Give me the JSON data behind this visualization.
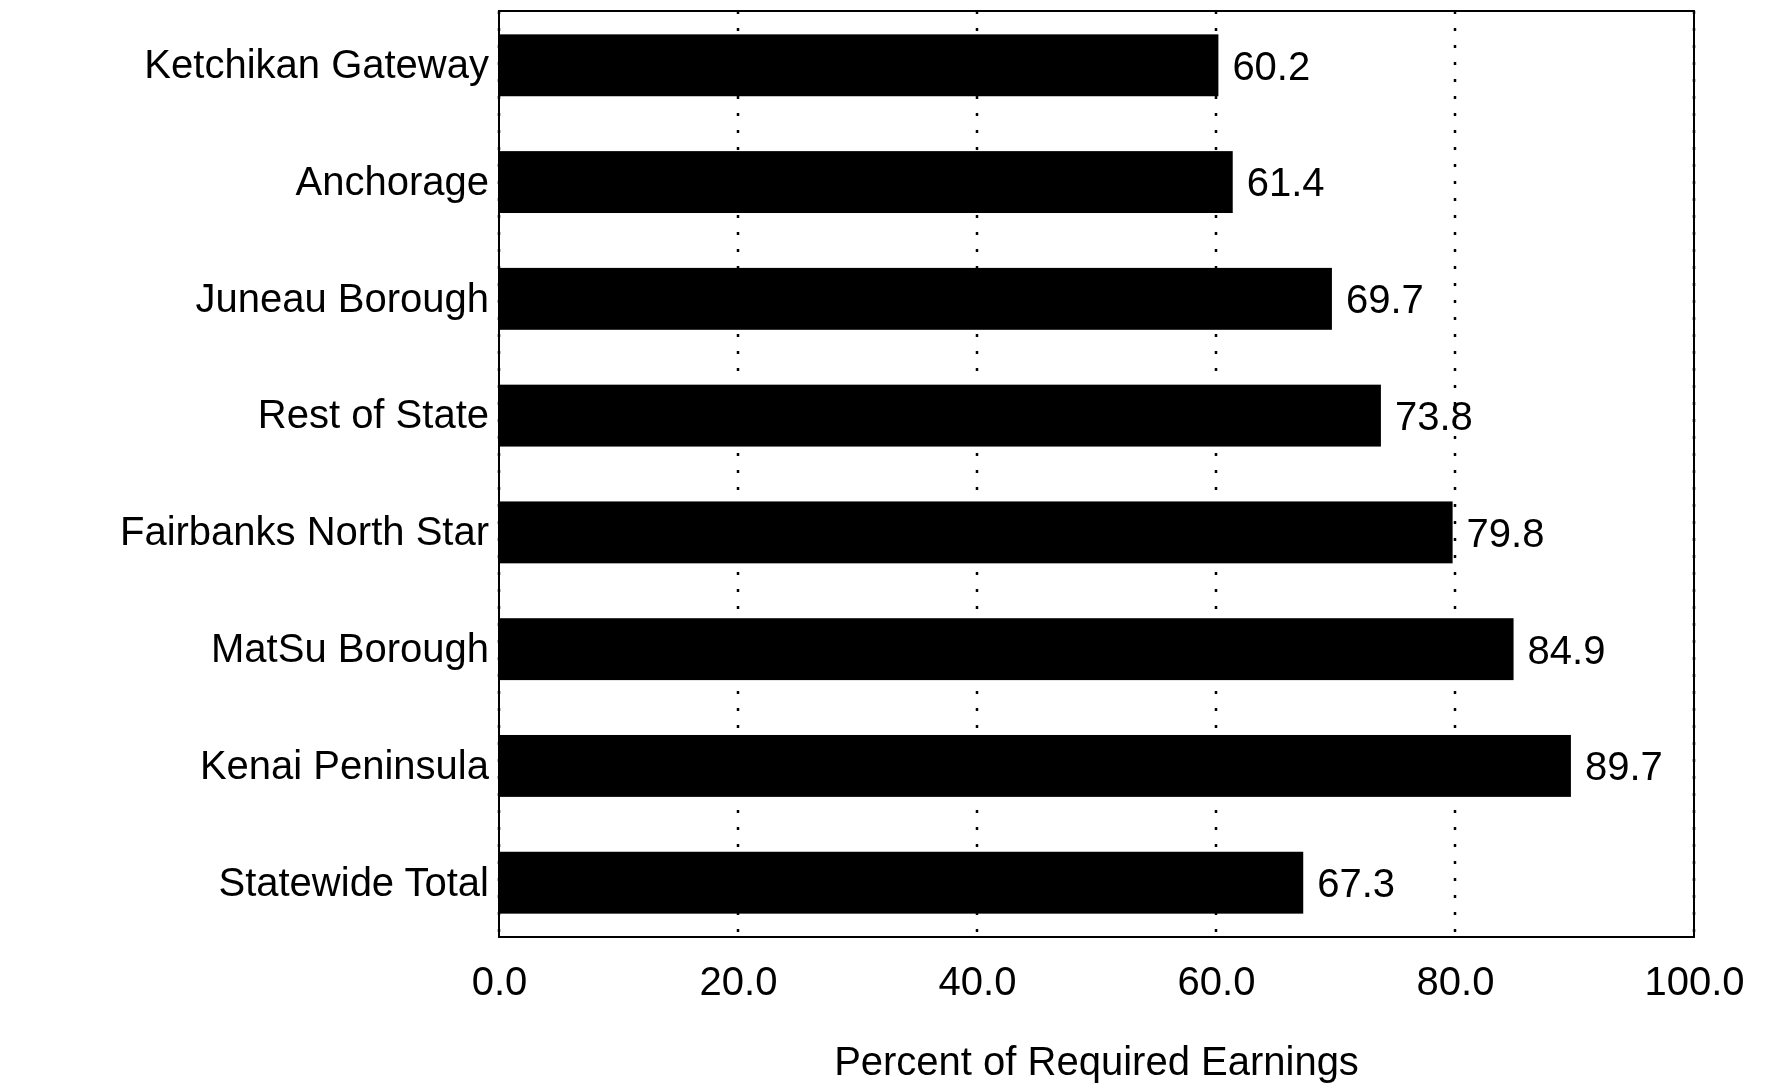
{
  "chart_data": {
    "type": "bar",
    "orientation": "horizontal",
    "xlabel": "Percent of Required Earnings",
    "categories": [
      "Ketchikan Gateway",
      "Anchorage",
      "Juneau Borough",
      "Rest of State",
      "Fairbanks North Star",
      "MatSu Borough",
      "Kenai Peninsula",
      "Statewide Total"
    ],
    "values": [
      60.2,
      61.4,
      69.7,
      73.8,
      79.8,
      84.9,
      89.7,
      67.3
    ],
    "color": "#000000",
    "xlim": [
      0,
      100
    ],
    "xticks": [
      {
        "value": 0,
        "label": "0.0"
      },
      {
        "value": 20,
        "label": "20.0"
      },
      {
        "value": 40,
        "label": "40.0"
      },
      {
        "value": 60,
        "label": "60.0"
      },
      {
        "value": 80,
        "label": "80.0"
      },
      {
        "value": 100,
        "label": "100.0"
      }
    ],
    "grid": "x",
    "data_labels": true
  }
}
